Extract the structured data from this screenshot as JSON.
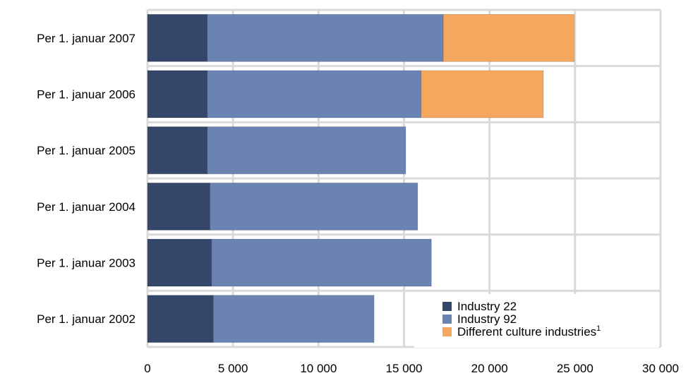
{
  "chart_data": {
    "type": "bar",
    "orientation": "horizontal",
    "stacked": true,
    "categories": [
      "Per 1. januar 2007",
      "Per 1. januar 2006",
      "Per 1. januar 2005",
      "Per 1. januar 2004",
      "Per 1. januar 2003",
      "Per 1. januar 2002"
    ],
    "series": [
      {
        "name": "Industry 22",
        "color": "#34476a",
        "values": [
          3500,
          3500,
          3500,
          3650,
          3750,
          3850
        ]
      },
      {
        "name": "Industry 92",
        "color": "#6b83b3",
        "values": [
          13800,
          12500,
          11600,
          12150,
          12850,
          9400
        ]
      },
      {
        "name": "Different culture industries",
        "name_superscript": "1",
        "color": "#f5a85d",
        "values": [
          7650,
          7150,
          0,
          0,
          0,
          0
        ]
      }
    ],
    "xlim": [
      0,
      30000
    ],
    "xticks": [
      0,
      5000,
      10000,
      15000,
      20000,
      25000,
      30000
    ],
    "xtick_labels": [
      "0",
      "5 000",
      "10 000",
      "15 000",
      "20 000",
      "25 000",
      "30 000"
    ],
    "grid": true,
    "legend_position": "bottom-right",
    "grid_color": "#d9d9d9"
  }
}
